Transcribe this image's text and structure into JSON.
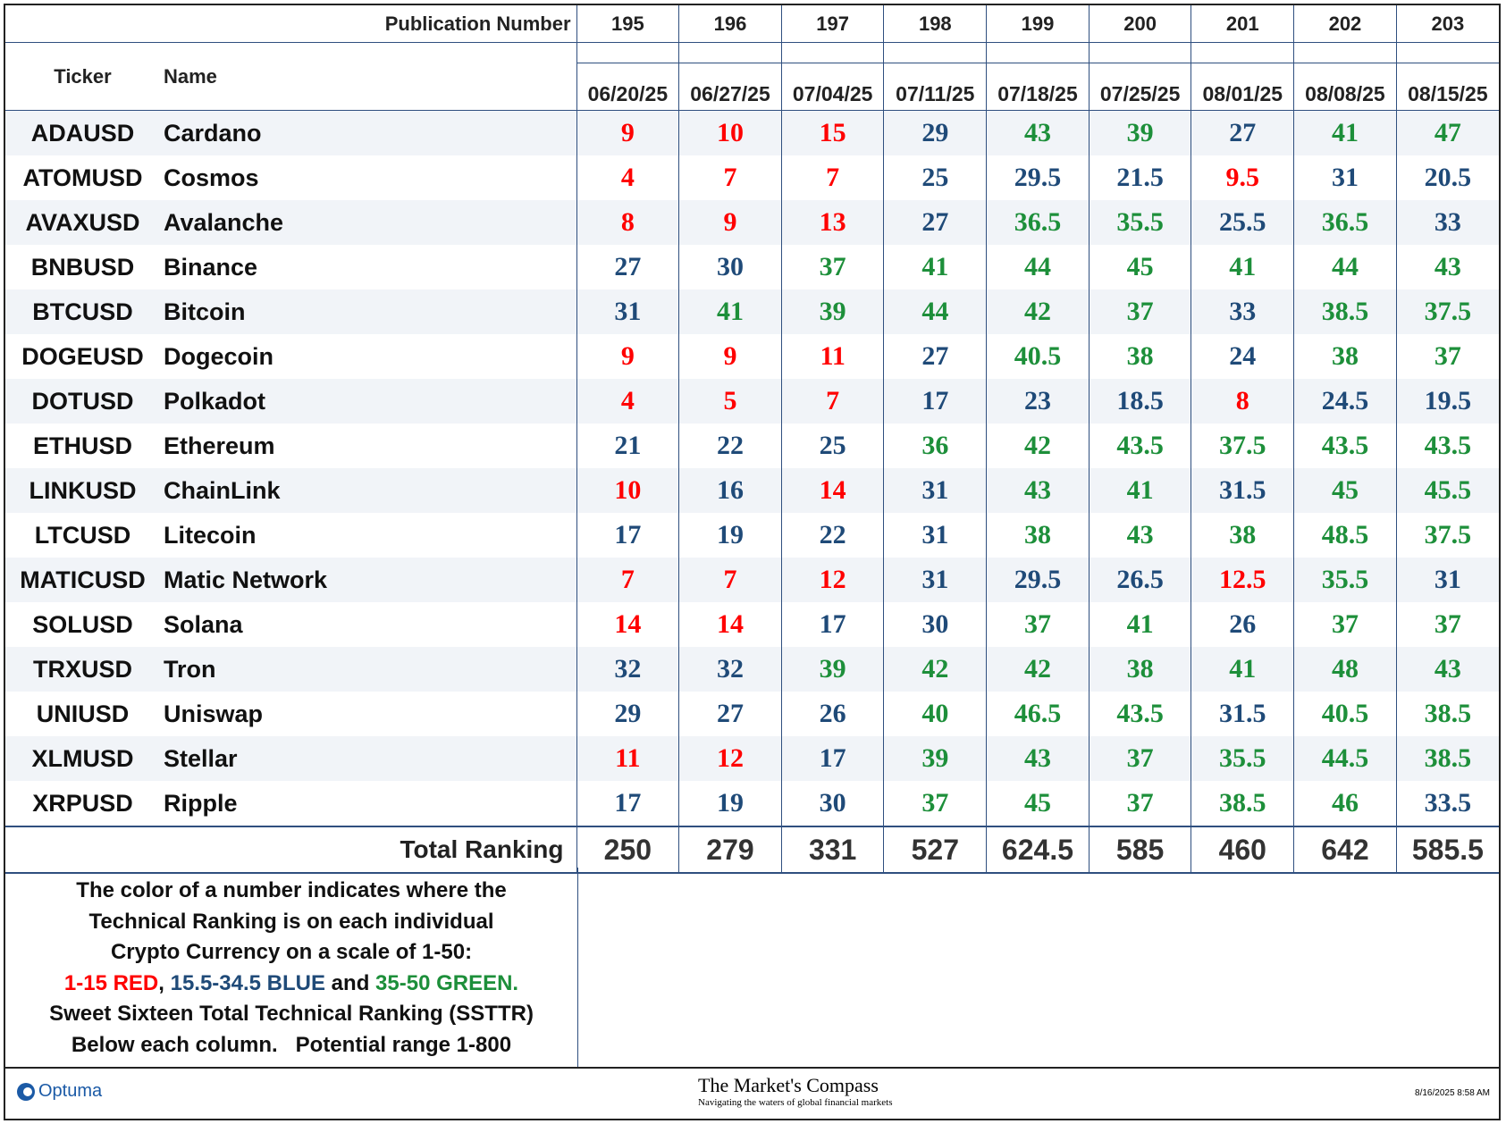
{
  "header": {
    "publication_label": "Publication Number",
    "ticker_label": "Ticker",
    "name_label": "Name",
    "publications": [
      "195",
      "196",
      "197",
      "198",
      "199",
      "200",
      "201",
      "202",
      "203"
    ],
    "dates": [
      "06/20/25",
      "06/27/25",
      "07/04/25",
      "07/11/25",
      "07/18/25",
      "07/25/25",
      "08/01/25",
      "08/08/25",
      "08/15/25"
    ]
  },
  "table": {
    "rows": [
      {
        "ticker": "ADAUSD",
        "name": "Cardano",
        "values": [
          9,
          10,
          15,
          29,
          43,
          39,
          27,
          41,
          47
        ],
        "colors": [
          "red",
          "red",
          "red",
          "blue",
          "green",
          "green",
          "blue",
          "green",
          "green"
        ]
      },
      {
        "ticker": "ATOMUSD",
        "name": "Cosmos",
        "values": [
          4,
          7,
          7,
          25,
          29.5,
          21.5,
          9.5,
          31,
          20.5
        ],
        "colors": [
          "red",
          "red",
          "red",
          "blue",
          "blue",
          "blue",
          "red",
          "blue",
          "blue"
        ]
      },
      {
        "ticker": "AVAXUSD",
        "name": "Avalanche",
        "values": [
          8,
          9,
          13,
          27,
          36.5,
          35.5,
          25.5,
          36.5,
          33
        ],
        "colors": [
          "red",
          "red",
          "red",
          "blue",
          "green",
          "green",
          "blue",
          "green",
          "blue"
        ]
      },
      {
        "ticker": "BNBUSD",
        "name": "Binance",
        "values": [
          27,
          30,
          37,
          41,
          44,
          45,
          41,
          44,
          43
        ],
        "colors": [
          "blue",
          "blue",
          "green",
          "green",
          "green",
          "green",
          "green",
          "green",
          "green"
        ]
      },
      {
        "ticker": "BTCUSD",
        "name": "Bitcoin",
        "values": [
          31,
          41,
          39,
          44,
          42,
          37,
          33,
          38.5,
          37.5
        ],
        "colors": [
          "blue",
          "green",
          "green",
          "green",
          "green",
          "green",
          "blue",
          "green",
          "green"
        ]
      },
      {
        "ticker": "DOGEUSD",
        "name": "Dogecoin",
        "values": [
          9,
          9,
          11,
          27,
          40.5,
          38,
          24,
          38,
          37
        ],
        "colors": [
          "red",
          "red",
          "red",
          "blue",
          "green",
          "green",
          "blue",
          "green",
          "green"
        ]
      },
      {
        "ticker": "DOTUSD",
        "name": "Polkadot",
        "values": [
          4,
          5,
          7,
          17,
          23,
          18.5,
          8,
          24.5,
          19.5
        ],
        "colors": [
          "red",
          "red",
          "red",
          "blue",
          "blue",
          "blue",
          "red",
          "blue",
          "blue"
        ]
      },
      {
        "ticker": "ETHUSD",
        "name": "Ethereum",
        "values": [
          21,
          22,
          25,
          36,
          42,
          43.5,
          37.5,
          43.5,
          43.5
        ],
        "colors": [
          "blue",
          "blue",
          "blue",
          "green",
          "green",
          "green",
          "green",
          "green",
          "green"
        ]
      },
      {
        "ticker": "LINKUSD",
        "name": "ChainLink",
        "values": [
          10,
          16,
          14,
          31,
          43,
          41,
          31.5,
          45,
          45.5
        ],
        "colors": [
          "red",
          "blue",
          "red",
          "blue",
          "green",
          "green",
          "blue",
          "green",
          "green"
        ]
      },
      {
        "ticker": "LTCUSD",
        "name": "Litecoin",
        "values": [
          17,
          19,
          22,
          31,
          38,
          43,
          38,
          48.5,
          37.5
        ],
        "colors": [
          "blue",
          "blue",
          "blue",
          "blue",
          "green",
          "green",
          "green",
          "green",
          "green"
        ]
      },
      {
        "ticker": "MATICUSD",
        "name": "Matic Network",
        "values": [
          7,
          7,
          12,
          31,
          29.5,
          26.5,
          12.5,
          35.5,
          31
        ],
        "colors": [
          "red",
          "red",
          "red",
          "blue",
          "blue",
          "blue",
          "red",
          "green",
          "blue"
        ]
      },
      {
        "ticker": "SOLUSD",
        "name": "Solana",
        "values": [
          14,
          14,
          17,
          30,
          37,
          41,
          26,
          37,
          37
        ],
        "colors": [
          "red",
          "red",
          "blue",
          "blue",
          "green",
          "green",
          "blue",
          "green",
          "green"
        ]
      },
      {
        "ticker": "TRXUSD",
        "name": "Tron",
        "values": [
          32,
          32,
          39,
          42,
          42,
          38,
          41,
          48,
          43
        ],
        "colors": [
          "blue",
          "blue",
          "green",
          "green",
          "green",
          "green",
          "green",
          "green",
          "green"
        ]
      },
      {
        "ticker": "UNIUSD",
        "name": "Uniswap",
        "values": [
          29,
          27,
          26,
          40,
          46.5,
          43.5,
          31.5,
          40.5,
          38.5
        ],
        "colors": [
          "blue",
          "blue",
          "blue",
          "green",
          "green",
          "green",
          "blue",
          "green",
          "green"
        ]
      },
      {
        "ticker": "XLMUSD",
        "name": "Stellar",
        "values": [
          11,
          12,
          17,
          39,
          43,
          37,
          35.5,
          44.5,
          38.5
        ],
        "colors": [
          "red",
          "red",
          "blue",
          "green",
          "green",
          "green",
          "green",
          "green",
          "green"
        ]
      },
      {
        "ticker": "XRPUSD",
        "name": "Ripple",
        "values": [
          17,
          19,
          30,
          37,
          45,
          37,
          38.5,
          46,
          33.5
        ],
        "colors": [
          "blue",
          "blue",
          "blue",
          "green",
          "green",
          "green",
          "green",
          "green",
          "blue"
        ]
      }
    ],
    "total_label": "Total Ranking",
    "totals": [
      250,
      279,
      331,
      527,
      624.5,
      585,
      460,
      642,
      585.5
    ]
  },
  "note": {
    "lines_top": [
      "The color of a number indicates where the",
      "Technical Ranking is on each individual",
      "Crypto Currency on a scale of 1-50:"
    ],
    "scale_parts": [
      {
        "text": "1-15 RED",
        "color": "red"
      },
      {
        "text": ", ",
        "color": "black"
      },
      {
        "text": "15.5-34.5 BLUE",
        "color": "blue"
      },
      {
        "text": " and ",
        "color": "black"
      },
      {
        "text": "35-50 GREEN.",
        "color": "green"
      }
    ],
    "lines_bottom": [
      "Sweet Sixteen Total Technical Ranking (SSTTR)",
      "Below each column.   Potential range 1-800"
    ]
  },
  "footer": {
    "logo": "Optuma",
    "brand": "The Market's Compass",
    "tagline": "Navigating the waters of global financial markets",
    "timestamp": "8/16/2025 8:58 AM"
  }
}
